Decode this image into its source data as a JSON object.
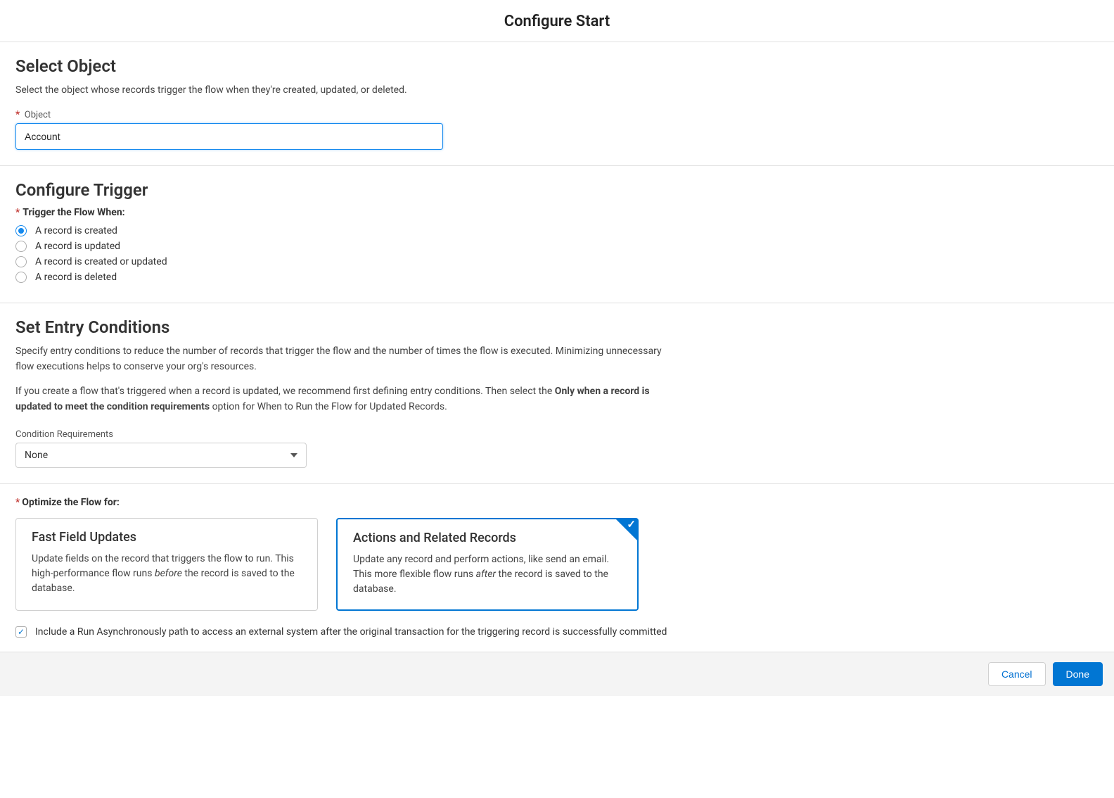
{
  "header": {
    "title": "Configure Start"
  },
  "selectObject": {
    "title": "Select Object",
    "desc": "Select the object whose records trigger the flow when they're created, updated, or deleted.",
    "fieldLabel": "Object",
    "value": "Account"
  },
  "configureTrigger": {
    "title": "Configure Trigger",
    "label": "Trigger the Flow When:",
    "options": [
      {
        "label": "A record is created",
        "selected": true
      },
      {
        "label": "A record is updated",
        "selected": false
      },
      {
        "label": "A record is created or updated",
        "selected": false
      },
      {
        "label": "A record is deleted",
        "selected": false
      }
    ]
  },
  "entryConditions": {
    "title": "Set Entry Conditions",
    "para1": "Specify entry conditions to reduce the number of records that trigger the flow and the number of times the flow is executed. Minimizing unnecessary flow executions helps to conserve your org's resources.",
    "para2a": "If you create a flow that's triggered when a record is updated, we recommend first defining entry conditions. Then select the ",
    "para2b": "Only when a record is updated to meet the condition requirements",
    "para2c": " option for When to Run the Flow for Updated Records.",
    "conditionLabel": "Condition Requirements",
    "conditionValue": "None"
  },
  "optimize": {
    "label": "Optimize the Flow for:",
    "cards": [
      {
        "title": "Fast Field Updates",
        "descA": "Update fields on the record that triggers the flow to run. This high-performance flow runs ",
        "descItalic": "before",
        "descB": " the record is saved to the database.",
        "selected": false
      },
      {
        "title": "Actions and Related Records",
        "descA": "Update any record and perform actions, like send an email. This more flexible flow runs ",
        "descItalic": "after",
        "descB": " the record is saved to the database.",
        "selected": true
      }
    ],
    "asyncCheckbox": {
      "checked": true,
      "label": "Include a Run Asynchronously path to access an external system after the original transaction for the triggering record is successfully committed"
    }
  },
  "footer": {
    "cancel": "Cancel",
    "done": "Done"
  },
  "colors": {
    "accent": "#0176d3",
    "inputFocus": "#1589ee",
    "requiredRed": "#c23934",
    "border": "#e0e0e0",
    "footerBg": "#f4f4f4"
  }
}
